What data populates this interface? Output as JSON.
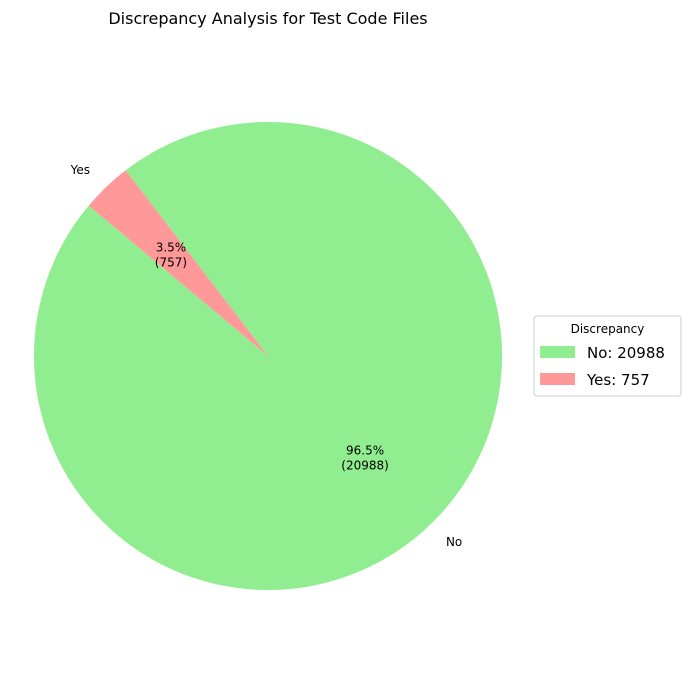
{
  "chart_data": {
    "type": "pie",
    "title": "Discrepancy Analysis for Test Code Files",
    "slices": [
      {
        "label": "No",
        "value": 20988,
        "percent": 96.5,
        "color": "#90ee90"
      },
      {
        "label": "Yes",
        "value": 757,
        "percent": 3.5,
        "color": "#ff9999"
      }
    ],
    "autopct_labels": [
      [
        "96.5%",
        "(20988)"
      ],
      [
        "3.5%",
        "(757)"
      ]
    ],
    "legend": {
      "title": "Discrepancy",
      "placement": "right",
      "entries": [
        "No: 20988",
        "Yes: 757"
      ]
    }
  }
}
